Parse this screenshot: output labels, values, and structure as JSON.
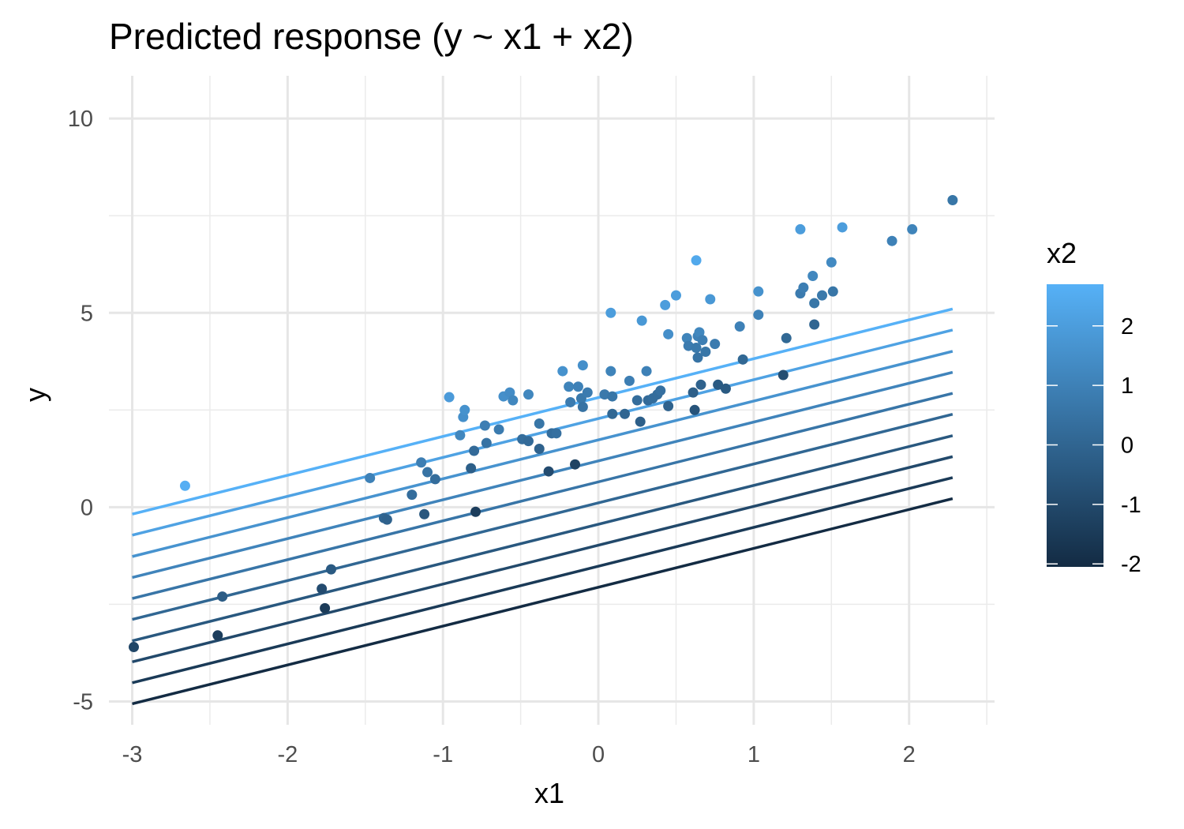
{
  "chart_data": {
    "type": "scatter",
    "title": "Predicted response (y ~ x1 + x2)",
    "xlabel": "x1",
    "ylabel": "y",
    "xlim": [
      -3.15,
      2.55
    ],
    "ylim": [
      -5.6,
      11.1
    ],
    "x_ticks": [
      -3,
      -2,
      -1,
      0,
      1,
      2
    ],
    "x_tick_labels": [
      "-3",
      "-2",
      "-1",
      "0",
      "1",
      "2"
    ],
    "y_ticks": [
      -5,
      0,
      5,
      10
    ],
    "y_tick_labels": [
      "-5",
      "0",
      "5",
      "10"
    ],
    "grid": true,
    "legend": {
      "title": "x2",
      "placement": "right",
      "type": "colorbar",
      "range": [
        -2.05,
        2.7
      ],
      "ticks": [
        2,
        1,
        0,
        -1,
        -2
      ],
      "tick_labels": [
        "2",
        "1",
        "0",
        "-1",
        "-2"
      ],
      "color_low": "#132B43",
      "color_high": "#56B1F7"
    },
    "lines": {
      "x_range": [
        -3.0,
        2.28
      ],
      "slope": 1.0,
      "intercepts": [
        2.82,
        2.28,
        1.73,
        1.19,
        0.65,
        0.11,
        -0.44,
        -0.98,
        -1.52,
        -2.06
      ],
      "x2_values": [
        2.7,
        2.17,
        1.64,
        1.12,
        0.59,
        0.06,
        -0.46,
        -0.99,
        -1.52,
        -2.05
      ]
    },
    "points": [
      {
        "x": -2.66,
        "y": 0.55,
        "x2": 2.6
      },
      {
        "x": -2.99,
        "y": -3.6,
        "x2": -1.1
      },
      {
        "x": -2.42,
        "y": -2.3,
        "x2": -0.3
      },
      {
        "x": -2.45,
        "y": -3.3,
        "x2": -1.4
      },
      {
        "x": -1.78,
        "y": -2.1,
        "x2": -0.9
      },
      {
        "x": -1.76,
        "y": -2.6,
        "x2": -1.5
      },
      {
        "x": -1.72,
        "y": -1.6,
        "x2": -0.4
      },
      {
        "x": -1.47,
        "y": 0.75,
        "x2": 1.0
      },
      {
        "x": -1.38,
        "y": -0.28,
        "x2": 0.0
      },
      {
        "x": -1.36,
        "y": -0.32,
        "x2": -0.1
      },
      {
        "x": -1.2,
        "y": 0.32,
        "x2": 0.3
      },
      {
        "x": -1.14,
        "y": 1.15,
        "x2": 0.9
      },
      {
        "x": -1.12,
        "y": -0.18,
        "x2": -0.5
      },
      {
        "x": -1.1,
        "y": 0.9,
        "x2": 0.5
      },
      {
        "x": -1.05,
        "y": 0.72,
        "x2": 0.3
      },
      {
        "x": -0.96,
        "y": 2.83,
        "x2": 1.9
      },
      {
        "x": -0.89,
        "y": 1.85,
        "x2": 1.2
      },
      {
        "x": -0.87,
        "y": 2.32,
        "x2": 1.5
      },
      {
        "x": -0.86,
        "y": 2.5,
        "x2": 1.6
      },
      {
        "x": -0.82,
        "y": 1.0,
        "x2": -0.2
      },
      {
        "x": -0.8,
        "y": 1.45,
        "x2": 0.2
      },
      {
        "x": -0.79,
        "y": -0.12,
        "x2": -1.4
      },
      {
        "x": -0.73,
        "y": 2.1,
        "x2": 0.9
      },
      {
        "x": -0.72,
        "y": 1.65,
        "x2": 0.5
      },
      {
        "x": -0.64,
        "y": 2.0,
        "x2": 0.8
      },
      {
        "x": -0.61,
        "y": 2.85,
        "x2": 1.5
      },
      {
        "x": -0.57,
        "y": 2.95,
        "x2": 1.4
      },
      {
        "x": -0.55,
        "y": 2.75,
        "x2": 1.2
      },
      {
        "x": -0.49,
        "y": 1.75,
        "x2": 0.3
      },
      {
        "x": -0.45,
        "y": 2.9,
        "x2": 1.2
      },
      {
        "x": -0.45,
        "y": 1.7,
        "x2": 0.2
      },
      {
        "x": -0.38,
        "y": 1.5,
        "x2": -0.1
      },
      {
        "x": -0.38,
        "y": 2.15,
        "x2": 0.6
      },
      {
        "x": -0.32,
        "y": 0.92,
        "x2": -0.9
      },
      {
        "x": -0.3,
        "y": 1.9,
        "x2": 0.3
      },
      {
        "x": -0.27,
        "y": 1.9,
        "x2": 0.4
      },
      {
        "x": -0.23,
        "y": 3.5,
        "x2": 1.6
      },
      {
        "x": -0.19,
        "y": 3.1,
        "x2": 1.1
      },
      {
        "x": -0.18,
        "y": 2.7,
        "x2": 0.8
      },
      {
        "x": -0.15,
        "y": 1.1,
        "x2": -1.2
      },
      {
        "x": -0.13,
        "y": 3.1,
        "x2": 1.0
      },
      {
        "x": -0.11,
        "y": 2.8,
        "x2": 0.7
      },
      {
        "x": -0.1,
        "y": 2.58,
        "x2": 0.5
      },
      {
        "x": -0.1,
        "y": 3.65,
        "x2": 1.5
      },
      {
        "x": -0.07,
        "y": 2.95,
        "x2": 0.8
      },
      {
        "x": 0.04,
        "y": 2.9,
        "x2": 0.7
      },
      {
        "x": 0.08,
        "y": 5.0,
        "x2": 2.0
      },
      {
        "x": 0.08,
        "y": 3.5,
        "x2": 1.1
      },
      {
        "x": 0.09,
        "y": 2.4,
        "x2": 0.1
      },
      {
        "x": 0.09,
        "y": 2.85,
        "x2": 0.6
      },
      {
        "x": 0.17,
        "y": 2.4,
        "x2": 0.0
      },
      {
        "x": 0.2,
        "y": 3.25,
        "x2": 0.9
      },
      {
        "x": 0.25,
        "y": 2.75,
        "x2": 0.3
      },
      {
        "x": 0.27,
        "y": 2.2,
        "x2": -0.2
      },
      {
        "x": 0.28,
        "y": 4.8,
        "x2": 1.8
      },
      {
        "x": 0.31,
        "y": 3.5,
        "x2": 1.0
      },
      {
        "x": 0.32,
        "y": 2.75,
        "x2": 0.2
      },
      {
        "x": 0.35,
        "y": 2.8,
        "x2": 0.3
      },
      {
        "x": 0.38,
        "y": 2.9,
        "x2": 0.3
      },
      {
        "x": 0.4,
        "y": 3.0,
        "x2": 0.4
      },
      {
        "x": 0.43,
        "y": 5.2,
        "x2": 2.0
      },
      {
        "x": 0.45,
        "y": 4.45,
        "x2": 1.5
      },
      {
        "x": 0.45,
        "y": 2.6,
        "x2": -0.1
      },
      {
        "x": 0.5,
        "y": 5.45,
        "x2": 2.0
      },
      {
        "x": 0.57,
        "y": 4.35,
        "x2": 1.1
      },
      {
        "x": 0.58,
        "y": 4.15,
        "x2": 0.8
      },
      {
        "x": 0.61,
        "y": 2.95,
        "x2": -0.2
      },
      {
        "x": 0.62,
        "y": 2.5,
        "x2": -0.6
      },
      {
        "x": 0.63,
        "y": 6.35,
        "x2": 2.4
      },
      {
        "x": 0.63,
        "y": 4.1,
        "x2": 0.7
      },
      {
        "x": 0.64,
        "y": 3.85,
        "x2": 0.5
      },
      {
        "x": 0.64,
        "y": 4.4,
        "x2": 1.0
      },
      {
        "x": 0.65,
        "y": 4.5,
        "x2": 1.2
      },
      {
        "x": 0.66,
        "y": 3.15,
        "x2": -0.1
      },
      {
        "x": 0.67,
        "y": 4.3,
        "x2": 0.9
      },
      {
        "x": 0.69,
        "y": 4.0,
        "x2": 0.6
      },
      {
        "x": 0.72,
        "y": 5.35,
        "x2": 1.8
      },
      {
        "x": 0.75,
        "y": 4.2,
        "x2": 0.8
      },
      {
        "x": 0.77,
        "y": 3.15,
        "x2": -0.4
      },
      {
        "x": 0.82,
        "y": 3.05,
        "x2": -0.4
      },
      {
        "x": 0.91,
        "y": 4.65,
        "x2": 1.0
      },
      {
        "x": 0.93,
        "y": 3.8,
        "x2": 0.1
      },
      {
        "x": 1.03,
        "y": 5.55,
        "x2": 1.6
      },
      {
        "x": 1.03,
        "y": 4.95,
        "x2": 1.0
      },
      {
        "x": 1.19,
        "y": 3.4,
        "x2": -0.8
      },
      {
        "x": 1.21,
        "y": 4.35,
        "x2": 0.1
      },
      {
        "x": 1.3,
        "y": 7.15,
        "x2": 2.0
      },
      {
        "x": 1.3,
        "y": 5.5,
        "x2": 0.8
      },
      {
        "x": 1.32,
        "y": 5.65,
        "x2": 0.9
      },
      {
        "x": 1.38,
        "y": 5.95,
        "x2": 1.2
      },
      {
        "x": 1.39,
        "y": 5.25,
        "x2": 0.6
      },
      {
        "x": 1.39,
        "y": 4.7,
        "x2": 0.0
      },
      {
        "x": 1.44,
        "y": 5.45,
        "x2": 0.7
      },
      {
        "x": 1.5,
        "y": 6.3,
        "x2": 1.3
      },
      {
        "x": 1.51,
        "y": 5.55,
        "x2": 0.6
      },
      {
        "x": 1.57,
        "y": 7.2,
        "x2": 2.0
      },
      {
        "x": 1.89,
        "y": 6.85,
        "x2": 1.0
      },
      {
        "x": 2.02,
        "y": 7.15,
        "x2": 1.1
      },
      {
        "x": 2.28,
        "y": 7.9,
        "x2": 0.6
      }
    ]
  }
}
